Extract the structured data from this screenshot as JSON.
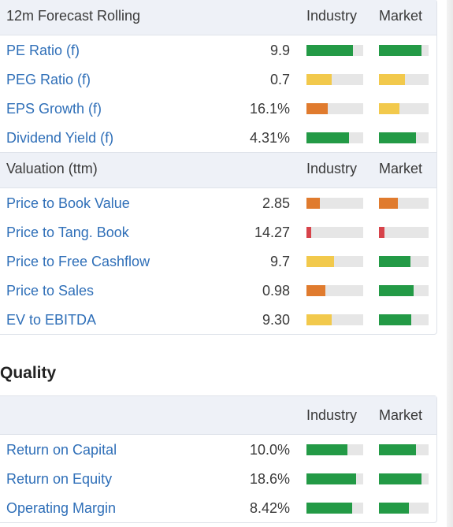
{
  "forecast": {
    "title": "12m Forecast Rolling",
    "col_industry": "Industry",
    "col_market": "Market",
    "rows": [
      {
        "label": "PE Ratio (f)",
        "value": "9.9",
        "industry": {
          "level": 0.82,
          "color": "#239a46"
        },
        "market": {
          "level": 0.85,
          "color": "#239a46"
        }
      },
      {
        "label": "PEG Ratio (f)",
        "value": "0.7",
        "industry": {
          "level": 0.44,
          "color": "#f2c94c"
        },
        "market": {
          "level": 0.52,
          "color": "#f2c94c"
        }
      },
      {
        "label": "EPS Growth (f)",
        "value": "16.1%",
        "industry": {
          "level": 0.38,
          "color": "#e07b2e"
        },
        "market": {
          "level": 0.42,
          "color": "#f2c94c"
        }
      },
      {
        "label": "Dividend Yield (f)",
        "value": "4.31%",
        "industry": {
          "level": 0.75,
          "color": "#239a46"
        },
        "market": {
          "level": 0.75,
          "color": "#239a46"
        }
      }
    ]
  },
  "valuation": {
    "title": "Valuation (ttm)",
    "col_industry": "Industry",
    "col_market": "Market",
    "rows": [
      {
        "label": "Price to Book Value",
        "value": "2.85",
        "industry": {
          "level": 0.23,
          "color": "#e07b2e"
        },
        "market": {
          "level": 0.38,
          "color": "#e07b2e"
        }
      },
      {
        "label": "Price to Tang. Book",
        "value": "14.27",
        "industry": {
          "level": 0.09,
          "color": "#d7434a"
        },
        "market": {
          "level": 0.11,
          "color": "#d7434a"
        }
      },
      {
        "label": "Price to Free Cashflow",
        "value": "9.7",
        "industry": {
          "level": 0.49,
          "color": "#f2c94c"
        },
        "market": {
          "level": 0.64,
          "color": "#239a46"
        }
      },
      {
        "label": "Price to Sales",
        "value": "0.98",
        "industry": {
          "level": 0.33,
          "color": "#e07b2e"
        },
        "market": {
          "level": 0.7,
          "color": "#239a46"
        }
      },
      {
        "label": "EV to EBITDA",
        "value": "9.30",
        "industry": {
          "level": 0.44,
          "color": "#f2c94c"
        },
        "market": {
          "level": 0.65,
          "color": "#239a46"
        }
      }
    ]
  },
  "quality": {
    "section_title": "Quality",
    "col_industry": "Industry",
    "col_market": "Market",
    "rows": [
      {
        "label": "Return on Capital",
        "value": "10.0%",
        "industry": {
          "level": 0.72,
          "color": "#239a46"
        },
        "market": {
          "level": 0.75,
          "color": "#239a46"
        }
      },
      {
        "label": "Return on Equity",
        "value": "18.6%",
        "industry": {
          "level": 0.87,
          "color": "#239a46"
        },
        "market": {
          "level": 0.85,
          "color": "#239a46"
        }
      },
      {
        "label": "Operating Margin",
        "value": "8.42%",
        "industry": {
          "level": 0.8,
          "color": "#239a46"
        },
        "market": {
          "level": 0.6,
          "color": "#239a46"
        }
      }
    ]
  }
}
